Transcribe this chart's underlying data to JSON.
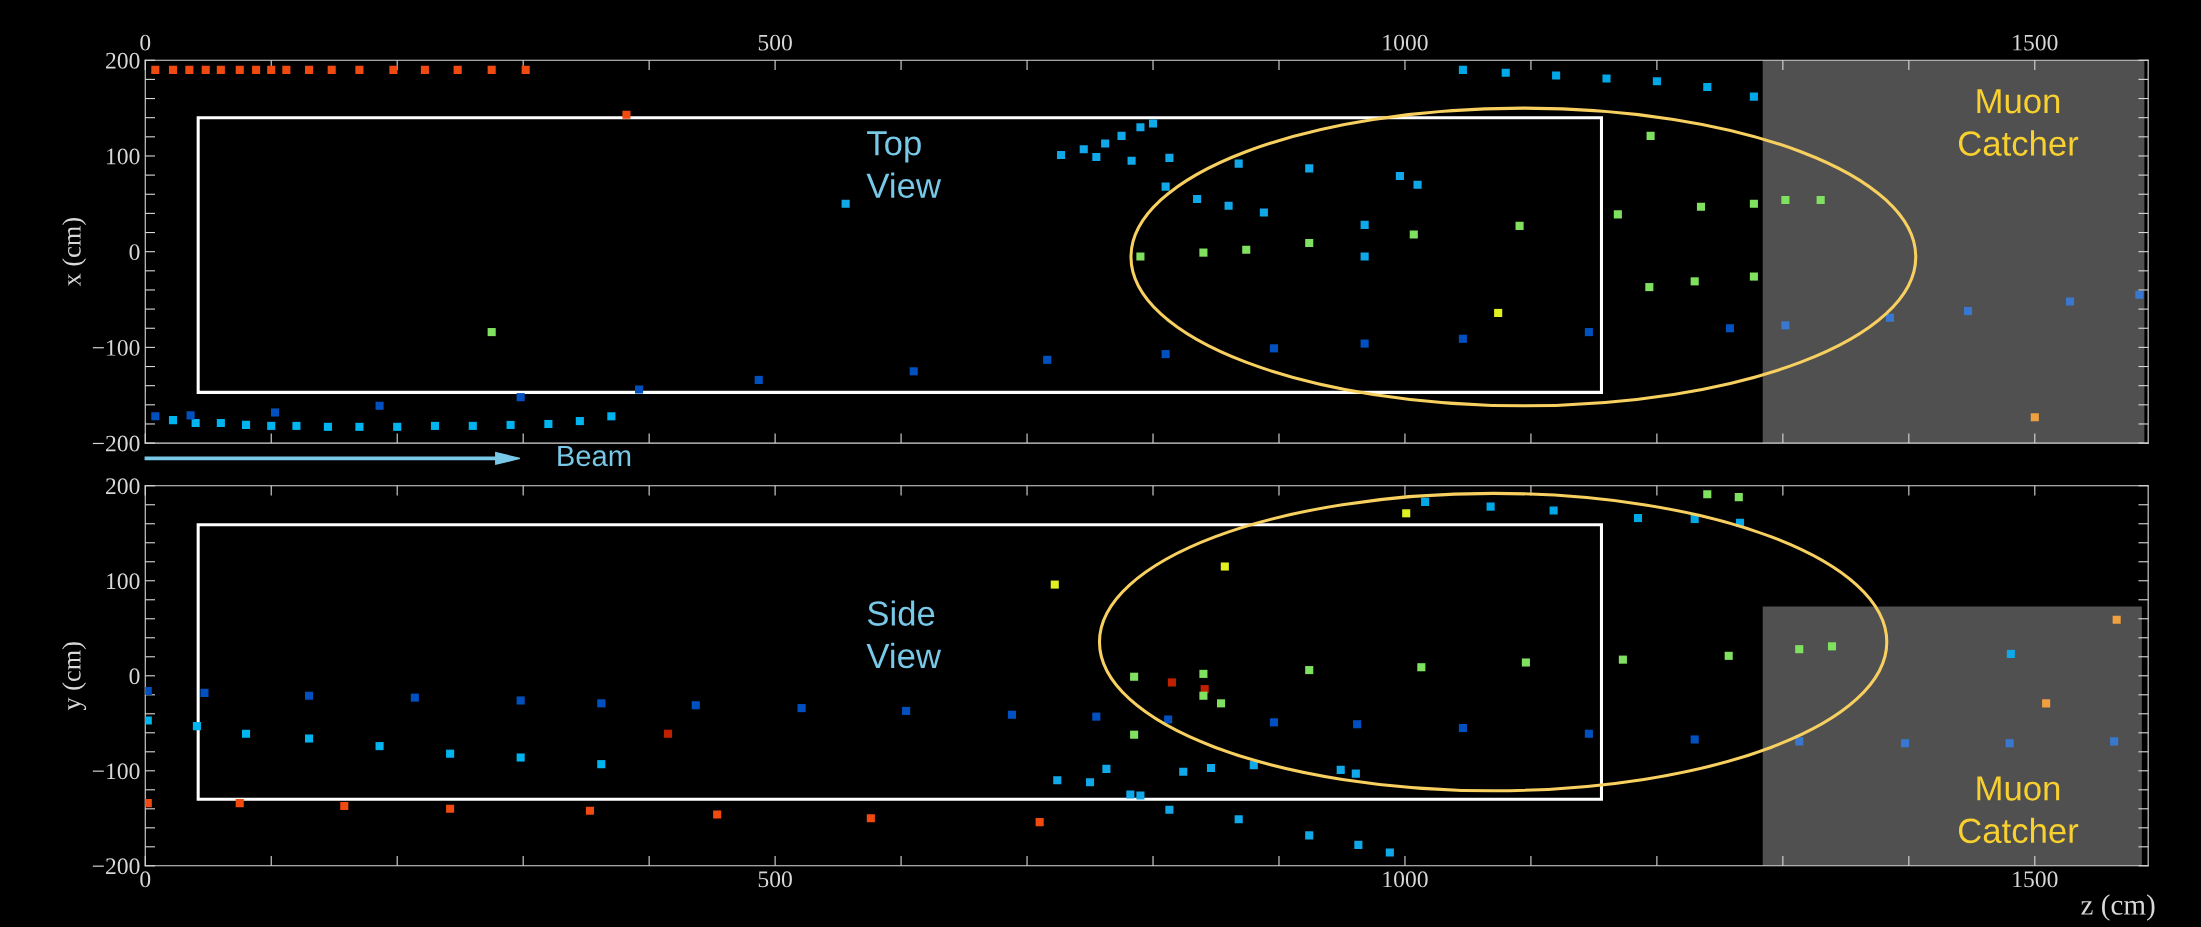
{
  "chart_data": [
    {
      "type": "scatter",
      "ylabel": "x (cm)",
      "marker": "square",
      "xlim": [
        0,
        1590
      ],
      "xticks": [
        {
          "value": 0,
          "label": "0"
        },
        {
          "value": 100,
          "label": null
        },
        {
          "value": 200,
          "label": null
        },
        {
          "value": 300,
          "label": null
        },
        {
          "value": 400,
          "label": null
        },
        {
          "value": 500,
          "label": "500"
        },
        {
          "value": 600,
          "label": null
        },
        {
          "value": 700,
          "label": null
        },
        {
          "value": 800,
          "label": null
        },
        {
          "value": 900,
          "label": null
        },
        {
          "value": 1000,
          "label": "1000"
        },
        {
          "value": 1100,
          "label": null
        },
        {
          "value": 1200,
          "label": null
        },
        {
          "value": 1300,
          "label": null
        },
        {
          "value": 1400,
          "label": null
        },
        {
          "value": 1500,
          "label": "1500"
        }
      ],
      "ylim": [
        -200,
        200
      ],
      "yticks": [
        {
          "value": -200,
          "label": "−200"
        },
        {
          "value": -180,
          "label": null
        },
        {
          "value": -160,
          "label": null
        },
        {
          "value": -140,
          "label": null
        },
        {
          "value": -120,
          "label": null
        },
        {
          "value": -100,
          "label": "−100"
        },
        {
          "value": -80,
          "label": null
        },
        {
          "value": -60,
          "label": null
        },
        {
          "value": -40,
          "label": null
        },
        {
          "value": -20,
          "label": null
        },
        {
          "value": 0,
          "label": "0"
        },
        {
          "value": 20,
          "label": null
        },
        {
          "value": 40,
          "label": null
        },
        {
          "value": 60,
          "label": null
        },
        {
          "value": 80,
          "label": null
        },
        {
          "value": 100,
          "label": "100"
        },
        {
          "value": 120,
          "label": null
        },
        {
          "value": 140,
          "label": null
        },
        {
          "value": 160,
          "label": null
        },
        {
          "value": 180,
          "label": null
        },
        {
          "value": 200,
          "label": "200"
        }
      ],
      "annotations": [
        "Top\nView",
        "Muon\nCatcher",
        "Beam"
      ],
      "series": [
        {
          "color": "#f04a10",
          "x": [
            8,
            22,
            35,
            48,
            60,
            75,
            88,
            100,
            112,
            130,
            148,
            170,
            197,
            222,
            248,
            275,
            302,
            382
          ],
          "values": [
            190,
            190,
            190,
            190,
            190,
            190,
            190,
            190,
            190,
            190,
            190,
            190,
            190,
            190,
            190,
            190,
            190,
            143
          ]
        },
        {
          "color": "#00b4ef",
          "x": [
            22,
            40,
            60,
            80,
            100,
            120,
            145,
            170,
            200,
            230,
            260,
            290,
            320,
            345,
            370
          ],
          "values": [
            -176,
            -179,
            -179,
            -181,
            -182,
            -182,
            -183,
            -183,
            -183,
            -182,
            -182,
            -181,
            -180,
            -177,
            -172
          ]
        },
        {
          "color": "#0050c0",
          "x": [
            8,
            36,
            103,
            186,
            298,
            392,
            487,
            610,
            716,
            810,
            896,
            968,
            1046,
            1146,
            1258
          ],
          "values": [
            -172,
            -171,
            -168,
            -161,
            -152,
            -144,
            -134,
            -125,
            -113,
            -107,
            -101,
            -96,
            -91,
            -84,
            -80
          ]
        },
        {
          "color": "#3a78d0",
          "x": [
            1302,
            1385,
            1447,
            1528,
            1583
          ],
          "values": [
            -77,
            -69,
            -62,
            -52,
            -45
          ]
        },
        {
          "color": "#00a8e8",
          "x": [
            1046,
            1080,
            1120,
            1160,
            1200,
            1240,
            1277
          ],
          "values": [
            190,
            187,
            184,
            181,
            178,
            172,
            162
          ]
        },
        {
          "color": "#10a8e8",
          "x": [
            727,
            745,
            762,
            775,
            790,
            800,
            755,
            783,
            813,
            868,
            924,
            996,
            1010,
            810,
            835,
            860,
            888,
            556,
            968,
            968
          ],
          "values": [
            101,
            107,
            113,
            121,
            130,
            134,
            99,
            95,
            98,
            92,
            87,
            79,
            70,
            68,
            55,
            48,
            41,
            50,
            28,
            -5
          ]
        },
        {
          "color": "#80e060",
          "x": [
            790,
            840,
            874,
            924,
            1007,
            1091,
            1169,
            1235,
            1277,
            1302,
            1330,
            1194,
            1230,
            1277,
            275,
            1195
          ],
          "values": [
            -5,
            -1,
            2,
            9,
            18,
            27,
            39,
            47,
            50,
            54,
            54,
            -37,
            -31,
            -26,
            -84,
            121
          ]
        },
        {
          "color": "#e0f020",
          "x": [
            1074
          ],
          "values": [
            -64
          ]
        },
        {
          "color": "#f0a040",
          "x": [
            1500
          ],
          "values": [
            -173
          ]
        }
      ]
    },
    {
      "type": "scatter",
      "ylabel": "y (cm)",
      "xlabel": "z (cm)",
      "marker": "square",
      "xlim": [
        0,
        1590
      ],
      "xticks": [
        {
          "value": 0,
          "label": "0"
        },
        {
          "value": 100,
          "label": null
        },
        {
          "value": 200,
          "label": null
        },
        {
          "value": 300,
          "label": null
        },
        {
          "value": 400,
          "label": null
        },
        {
          "value": 500,
          "label": "500"
        },
        {
          "value": 600,
          "label": null
        },
        {
          "value": 700,
          "label": null
        },
        {
          "value": 800,
          "label": null
        },
        {
          "value": 900,
          "label": null
        },
        {
          "value": 1000,
          "label": "1000"
        },
        {
          "value": 1100,
          "label": null
        },
        {
          "value": 1200,
          "label": null
        },
        {
          "value": 1300,
          "label": null
        },
        {
          "value": 1400,
          "label": null
        },
        {
          "value": 1500,
          "label": "1500"
        }
      ],
      "ylim": [
        -200,
        200
      ],
      "yticks": [
        {
          "value": -200,
          "label": "−200"
        },
        {
          "value": -180,
          "label": null
        },
        {
          "value": -160,
          "label": null
        },
        {
          "value": -140,
          "label": null
        },
        {
          "value": -120,
          "label": null
        },
        {
          "value": -100,
          "label": "−100"
        },
        {
          "value": -80,
          "label": null
        },
        {
          "value": -60,
          "label": null
        },
        {
          "value": -40,
          "label": null
        },
        {
          "value": -20,
          "label": null
        },
        {
          "value": 0,
          "label": "0"
        },
        {
          "value": 20,
          "label": null
        },
        {
          "value": 40,
          "label": null
        },
        {
          "value": 60,
          "label": null
        },
        {
          "value": 80,
          "label": null
        },
        {
          "value": 100,
          "label": "100"
        },
        {
          "value": 120,
          "label": null
        },
        {
          "value": 140,
          "label": null
        },
        {
          "value": 160,
          "label": null
        },
        {
          "value": 180,
          "label": null
        },
        {
          "value": 200,
          "label": "200"
        }
      ],
      "annotations": [
        "Side\nView",
        "Muon\nCatcher"
      ],
      "series": [
        {
          "color": "#0050c0",
          "x": [
            2,
            47,
            130,
            214,
            298,
            362,
            437,
            521,
            604,
            688,
            755,
            812,
            896,
            962,
            1046,
            1146,
            1230
          ],
          "values": [
            -16,
            -18,
            -21,
            -23,
            -26,
            -29,
            -31,
            -34,
            -37,
            -41,
            -43,
            -46,
            -49,
            -51,
            -55,
            -61,
            -67
          ]
        },
        {
          "color": "#3a78d0",
          "x": [
            1313,
            1397,
            1480,
            1563
          ],
          "values": [
            -69,
            -71,
            -71,
            -69
          ]
        },
        {
          "color": "#00b4ef",
          "x": [
            2,
            41,
            80,
            130,
            186,
            242,
            298,
            362
          ],
          "values": [
            -47,
            -53,
            -61,
            -66,
            -74,
            -82,
            -86,
            -93
          ]
        },
        {
          "color": "#f04a10",
          "x": [
            2,
            75,
            158,
            242,
            353,
            454,
            576,
            710
          ],
          "values": [
            -134,
            -134,
            -137,
            -140,
            -142,
            -146,
            -150,
            -154
          ]
        },
        {
          "color": "#c02000",
          "x": [
            415,
            815,
            841
          ],
          "values": [
            -61,
            -7,
            -14
          ]
        },
        {
          "color": "#10a8e8",
          "x": [
            813,
            868,
            924,
            963,
            988,
            724,
            750,
            763,
            782,
            790,
            824,
            846,
            880,
            949,
            961,
            1481
          ],
          "values": [
            -141,
            -151,
            -168,
            -178,
            -186,
            -110,
            -112,
            -98,
            -125,
            -126,
            -101,
            -97,
            -94,
            -99,
            -103,
            23
          ]
        },
        {
          "color": "#00a8e8",
          "x": [
            1016,
            1068,
            1118,
            1185,
            1230,
            1266
          ],
          "values": [
            183,
            178,
            174,
            166,
            165,
            161
          ]
        },
        {
          "color": "#80e060",
          "x": [
            785,
            840,
            924,
            1013,
            1096,
            1173,
            1257,
            1313,
            1339,
            840,
            854,
            785,
            1240,
            1265
          ],
          "values": [
            -1,
            2,
            6,
            9,
            14,
            17,
            21,
            28,
            31,
            -21,
            -29,
            -62,
            191,
            188
          ]
        },
        {
          "color": "#e0f020",
          "x": [
            1001,
            857,
            722
          ],
          "values": [
            171,
            115,
            96
          ]
        },
        {
          "color": "#f0a040",
          "x": [
            1509,
            1565
          ],
          "values": [
            -29,
            59
          ]
        }
      ]
    }
  ]
}
